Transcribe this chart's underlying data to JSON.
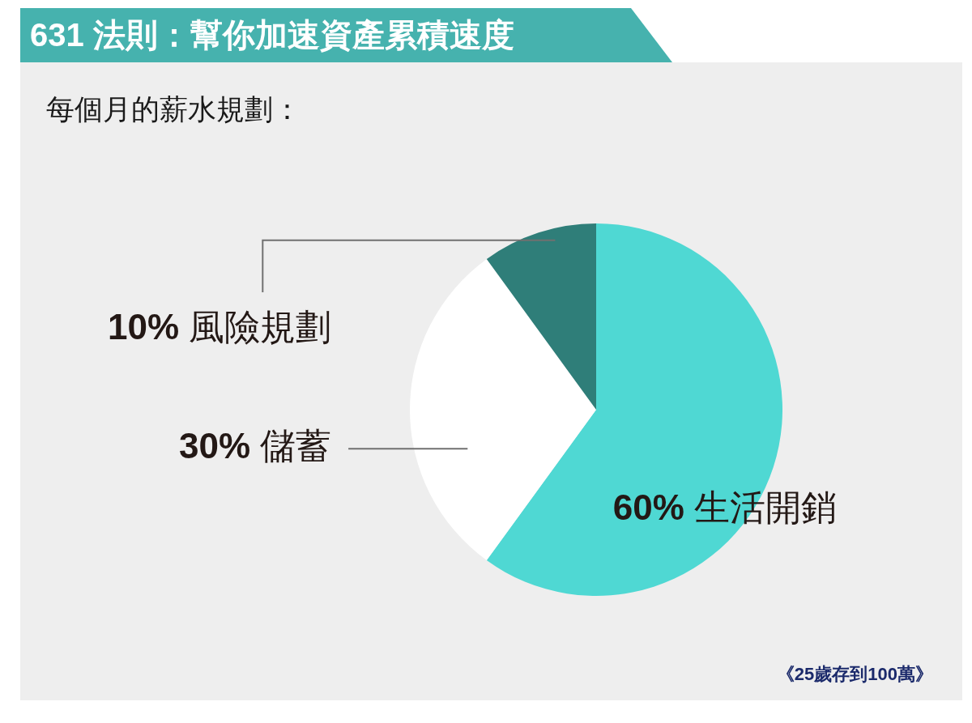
{
  "chart_data": {
    "type": "pie",
    "title": "631 法則：幫你加速資產累積速度",
    "subtitle": "每個月的薪水規劃：",
    "categories": [
      "生活開銷",
      "儲蓄",
      "風險規劃"
    ],
    "values": [
      60,
      30,
      10
    ],
    "colors": [
      "#4fd8d3",
      "#ffffff",
      "#2f7e79"
    ],
    "value_labels": [
      "60%",
      "30%",
      "10%"
    ],
    "annotations": [
      "《25歲存到100萬》"
    ]
  }
}
